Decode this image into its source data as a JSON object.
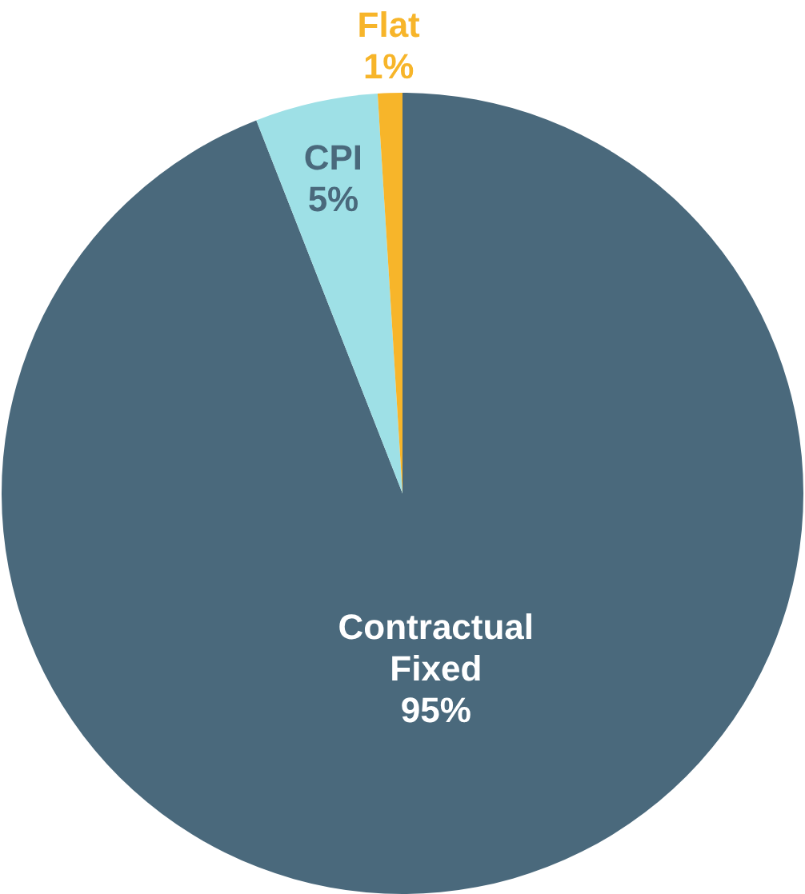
{
  "chart_data": {
    "type": "pie",
    "categories": [
      "Contractual Fixed",
      "CPI",
      "Flat"
    ],
    "values": [
      95,
      5,
      1
    ],
    "colors": [
      "#4a697c",
      "#9ee0e6",
      "#f7b52a"
    ],
    "value_labels": [
      "95%",
      "5%",
      "1%"
    ],
    "legend": false
  }
}
